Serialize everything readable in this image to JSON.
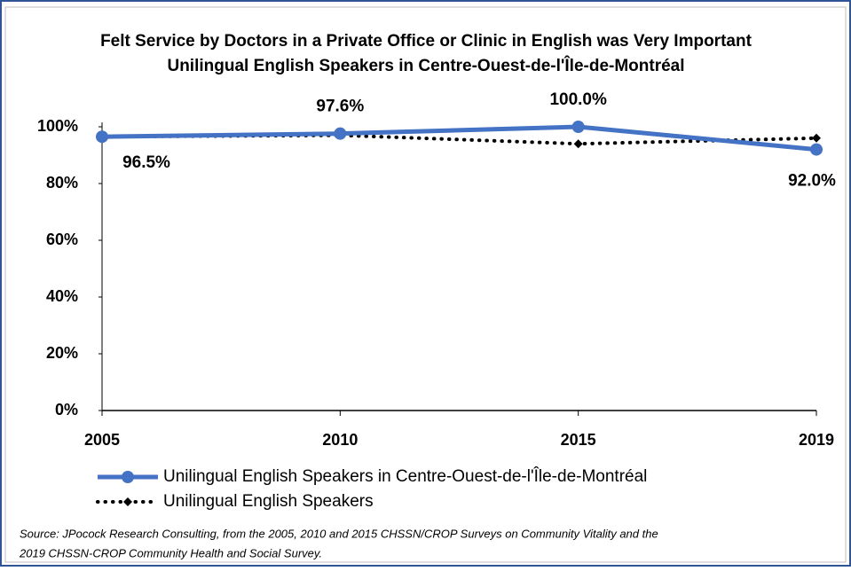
{
  "chart_data": {
    "type": "line",
    "title": [
      "Felt Service by Doctors in a Private Office or Clinic in English was Very Important",
      "Unilingual English Speakers in Centre-Ouest-de-l'Île-de-Montréal"
    ],
    "categories": [
      "2005",
      "2010",
      "2015",
      "2019"
    ],
    "series": [
      {
        "name": "Unilingual English Speakers in Centre-Ouest-de-l'Île-de-Montréal",
        "color": "#4472c4",
        "style": "solid",
        "values": [
          96.5,
          97.6,
          100.0,
          92.0
        ],
        "value_labels": [
          "96.5%",
          "97.6%",
          "100.0%",
          "92.0%"
        ]
      },
      {
        "name": "Unilingual English Speakers",
        "color": "#000000",
        "style": "dotted",
        "values": [
          96.5,
          97,
          94,
          96
        ]
      }
    ],
    "ylim": [
      0,
      100
    ],
    "yticks": [
      {
        "value": 0,
        "label": "0%"
      },
      {
        "value": 20,
        "label": "20%"
      },
      {
        "value": 40,
        "label": "40%"
      },
      {
        "value": 60,
        "label": "60%"
      },
      {
        "value": 80,
        "label": "80%"
      },
      {
        "value": 100,
        "label": "100%"
      }
    ],
    "legend": "bottom",
    "source": [
      "Source: JPocock Research Consulting, from the 2005, 2010  and 2015  CHSSN/CROP Surveys on Community Vitality and the",
      "2019  CHSSN-CROP Community Health and Social Survey."
    ]
  }
}
